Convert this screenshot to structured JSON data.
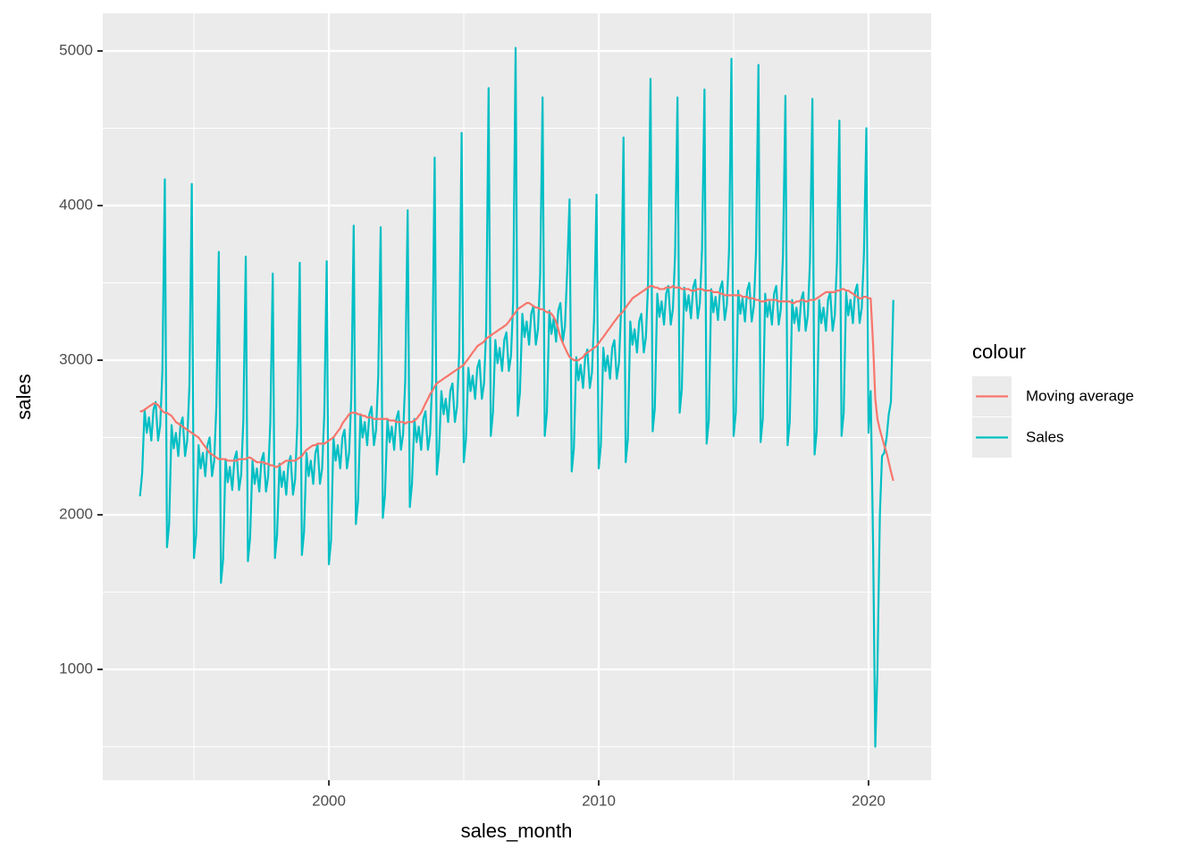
{
  "chart_data": {
    "type": "line",
    "x_label": "sales_month",
    "y_label": "sales",
    "legend_title": "colour",
    "xlim": [
      1991.62,
      2022.32
    ],
    "ylim": [
      283,
      5243
    ],
    "xticks": [
      2000,
      2010,
      2020
    ],
    "yticks": [
      1000,
      2000,
      3000,
      4000,
      5000
    ],
    "grid": true,
    "legend_position": "right",
    "x": [
      1993,
      1993.08,
      1993.17,
      1993.25,
      1993.33,
      1993.42,
      1993.5,
      1993.58,
      1993.67,
      1993.75,
      1993.83,
      1993.92,
      1994,
      1994.08,
      1994.17,
      1994.25,
      1994.33,
      1994.42,
      1994.5,
      1994.58,
      1994.67,
      1994.75,
      1994.83,
      1994.92,
      1995,
      1995.08,
      1995.17,
      1995.25,
      1995.33,
      1995.42,
      1995.5,
      1995.58,
      1995.67,
      1995.75,
      1995.83,
      1995.92,
      1996,
      1996.08,
      1996.17,
      1996.25,
      1996.33,
      1996.42,
      1996.5,
      1996.58,
      1996.67,
      1996.75,
      1996.83,
      1996.92,
      1997,
      1997.08,
      1997.17,
      1997.25,
      1997.33,
      1997.42,
      1997.5,
      1997.58,
      1997.67,
      1997.75,
      1997.83,
      1997.92,
      1998,
      1998.08,
      1998.17,
      1998.25,
      1998.33,
      1998.42,
      1998.5,
      1998.58,
      1998.67,
      1998.75,
      1998.83,
      1998.92,
      1999,
      1999.08,
      1999.17,
      1999.25,
      1999.33,
      1999.42,
      1999.5,
      1999.58,
      1999.67,
      1999.75,
      1999.83,
      1999.92,
      2000,
      2000.08,
      2000.17,
      2000.25,
      2000.33,
      2000.42,
      2000.5,
      2000.58,
      2000.67,
      2000.75,
      2000.83,
      2000.92,
      2001,
      2001.08,
      2001.17,
      2001.25,
      2001.33,
      2001.42,
      2001.5,
      2001.58,
      2001.67,
      2001.75,
      2001.83,
      2001.92,
      2002,
      2002.08,
      2002.17,
      2002.25,
      2002.33,
      2002.42,
      2002.5,
      2002.58,
      2002.67,
      2002.75,
      2002.83,
      2002.92,
      2003,
      2003.08,
      2003.17,
      2003.25,
      2003.33,
      2003.42,
      2003.5,
      2003.58,
      2003.67,
      2003.75,
      2003.83,
      2003.92,
      2004,
      2004.08,
      2004.17,
      2004.25,
      2004.33,
      2004.42,
      2004.5,
      2004.58,
      2004.67,
      2004.75,
      2004.83,
      2004.92,
      2005,
      2005.08,
      2005.17,
      2005.25,
      2005.33,
      2005.42,
      2005.5,
      2005.58,
      2005.67,
      2005.75,
      2005.83,
      2005.92,
      2006,
      2006.08,
      2006.17,
      2006.25,
      2006.33,
      2006.42,
      2006.5,
      2006.58,
      2006.67,
      2006.75,
      2006.83,
      2006.92,
      2007,
      2007.08,
      2007.17,
      2007.25,
      2007.33,
      2007.42,
      2007.5,
      2007.58,
      2007.67,
      2007.75,
      2007.83,
      2007.92,
      2008,
      2008.08,
      2008.17,
      2008.25,
      2008.33,
      2008.42,
      2008.5,
      2008.58,
      2008.67,
      2008.75,
      2008.83,
      2008.92,
      2009,
      2009.08,
      2009.17,
      2009.25,
      2009.33,
      2009.42,
      2009.5,
      2009.58,
      2009.67,
      2009.75,
      2009.83,
      2009.92,
      2010,
      2010.08,
      2010.17,
      2010.25,
      2010.33,
      2010.42,
      2010.5,
      2010.58,
      2010.67,
      2010.75,
      2010.83,
      2010.92,
      2011,
      2011.08,
      2011.17,
      2011.25,
      2011.33,
      2011.42,
      2011.5,
      2011.58,
      2011.67,
      2011.75,
      2011.83,
      2011.92,
      2012,
      2012.08,
      2012.17,
      2012.25,
      2012.33,
      2012.42,
      2012.5,
      2012.58,
      2012.67,
      2012.75,
      2012.83,
      2012.92,
      2013,
      2013.08,
      2013.17,
      2013.25,
      2013.33,
      2013.42,
      2013.5,
      2013.58,
      2013.67,
      2013.75,
      2013.83,
      2013.92,
      2014,
      2014.08,
      2014.17,
      2014.25,
      2014.33,
      2014.42,
      2014.5,
      2014.58,
      2014.67,
      2014.75,
      2014.83,
      2014.92,
      2015,
      2015.08,
      2015.17,
      2015.25,
      2015.33,
      2015.42,
      2015.5,
      2015.58,
      2015.67,
      2015.75,
      2015.83,
      2015.92,
      2016,
      2016.08,
      2016.17,
      2016.25,
      2016.33,
      2016.42,
      2016.5,
      2016.58,
      2016.67,
      2016.75,
      2016.83,
      2016.92,
      2017,
      2017.08,
      2017.17,
      2017.25,
      2017.33,
      2017.42,
      2017.5,
      2017.58,
      2017.67,
      2017.75,
      2017.83,
      2017.92,
      2018,
      2018.08,
      2018.17,
      2018.25,
      2018.33,
      2018.42,
      2018.5,
      2018.58,
      2018.67,
      2018.75,
      2018.83,
      2018.92,
      2019,
      2019.08,
      2019.17,
      2019.25,
      2019.33,
      2019.42,
      2019.5,
      2019.58,
      2019.67,
      2019.75,
      2019.83,
      2019.92,
      2020,
      2020.08,
      2020.17,
      2020.25,
      2020.33,
      2020.42,
      2020.5,
      2020.58,
      2020.67,
      2020.75,
      2020.83,
      2020.92
    ],
    "series": [
      {
        "name": "Moving average",
        "color": "#F8766D",
        "values": [
          2670,
          2670,
          2680,
          2690,
          2700,
          2710,
          2720,
          2720,
          2710,
          2690,
          2670,
          2660,
          2660,
          2650,
          2640,
          2620,
          2600,
          2590,
          2580,
          2570,
          2560,
          2550,
          2540,
          2530,
          2520,
          2510,
          2500,
          2480,
          2460,
          2440,
          2420,
          2400,
          2390,
          2380,
          2370,
          2360,
          2360,
          2360,
          2360,
          2350,
          2350,
          2350,
          2350,
          2350,
          2360,
          2360,
          2360,
          2360,
          2370,
          2370,
          2360,
          2350,
          2340,
          2340,
          2340,
          2340,
          2330,
          2330,
          2320,
          2320,
          2310,
          2310,
          2320,
          2330,
          2340,
          2350,
          2350,
          2350,
          2350,
          2350,
          2360,
          2370,
          2380,
          2400,
          2420,
          2430,
          2440,
          2450,
          2450,
          2460,
          2460,
          2460,
          2460,
          2470,
          2480,
          2490,
          2500,
          2520,
          2540,
          2560,
          2590,
          2610,
          2630,
          2650,
          2660,
          2660,
          2660,
          2650,
          2650,
          2640,
          2640,
          2630,
          2630,
          2630,
          2620,
          2620,
          2620,
          2620,
          2620,
          2620,
          2620,
          2610,
          2610,
          2610,
          2600,
          2600,
          2600,
          2600,
          2590,
          2600,
          2600,
          2600,
          2610,
          2620,
          2640,
          2660,
          2690,
          2720,
          2750,
          2780,
          2800,
          2830,
          2850,
          2860,
          2870,
          2880,
          2890,
          2900,
          2910,
          2920,
          2930,
          2940,
          2950,
          2960,
          2970,
          2990,
          3010,
          3030,
          3050,
          3070,
          3090,
          3100,
          3110,
          3120,
          3140,
          3150,
          3160,
          3170,
          3180,
          3190,
          3200,
          3210,
          3220,
          3230,
          3250,
          3270,
          3290,
          3310,
          3330,
          3340,
          3350,
          3360,
          3370,
          3370,
          3360,
          3350,
          3340,
          3340,
          3330,
          3330,
          3320,
          3310,
          3310,
          3300,
          3280,
          3250,
          3200,
          3150,
          3110,
          3080,
          3050,
          3020,
          3010,
          3000,
          3000,
          3000,
          3010,
          3020,
          3040,
          3050,
          3060,
          3070,
          3080,
          3090,
          3110,
          3130,
          3150,
          3170,
          3190,
          3210,
          3230,
          3250,
          3270,
          3290,
          3300,
          3320,
          3340,
          3360,
          3380,
          3400,
          3410,
          3420,
          3430,
          3440,
          3450,
          3460,
          3470,
          3480,
          3480,
          3470,
          3470,
          3460,
          3460,
          3460,
          3470,
          3470,
          3470,
          3480,
          3470,
          3470,
          3470,
          3460,
          3460,
          3460,
          3460,
          3450,
          3450,
          3450,
          3460,
          3460,
          3460,
          3450,
          3450,
          3450,
          3450,
          3440,
          3440,
          3440,
          3430,
          3430,
          3420,
          3420,
          3420,
          3420,
          3420,
          3420,
          3420,
          3420,
          3410,
          3410,
          3410,
          3400,
          3400,
          3400,
          3390,
          3390,
          3380,
          3380,
          3380,
          3390,
          3390,
          3390,
          3390,
          3390,
          3380,
          3380,
          3380,
          3380,
          3380,
          3380,
          3370,
          3370,
          3380,
          3380,
          3390,
          3390,
          3380,
          3380,
          3390,
          3390,
          3390,
          3400,
          3410,
          3420,
          3430,
          3440,
          3440,
          3440,
          3440,
          3440,
          3450,
          3450,
          3460,
          3460,
          3450,
          3450,
          3440,
          3430,
          3420,
          3410,
          3400,
          3400,
          3410,
          3410,
          3400,
          3400,
          3100,
          2750,
          2620,
          2550,
          2500,
          2450,
          2400,
          2340,
          2280,
          2220
        ]
      },
      {
        "name": "Sales",
        "color": "#00BFC4",
        "values": [
          2120,
          2270,
          2680,
          2530,
          2630,
          2480,
          2680,
          2730,
          2480,
          2580,
          2930,
          4170,
          1790,
          1940,
          2580,
          2430,
          2530,
          2380,
          2580,
          2630,
          2380,
          2480,
          2830,
          4140,
          1720,
          1870,
          2450,
          2300,
          2400,
          2250,
          2450,
          2500,
          2250,
          2350,
          2700,
          3700,
          1560,
          1710,
          2360,
          2210,
          2310,
          2160,
          2360,
          2410,
          2160,
          2260,
          2610,
          3670,
          1700,
          1850,
          2350,
          2200,
          2300,
          2150,
          2350,
          2400,
          2150,
          2250,
          2600,
          3560,
          1720,
          1870,
          2330,
          2180,
          2280,
          2130,
          2330,
          2380,
          2130,
          2230,
          2580,
          3630,
          1740,
          1890,
          2400,
          2250,
          2350,
          2200,
          2400,
          2450,
          2200,
          2300,
          2650,
          3640,
          1680,
          1830,
          2500,
          2350,
          2450,
          2300,
          2500,
          2550,
          2300,
          2400,
          2750,
          3870,
          1940,
          2090,
          2650,
          2500,
          2600,
          2450,
          2650,
          2700,
          2450,
          2550,
          2900,
          3860,
          1980,
          2130,
          2620,
          2470,
          2570,
          2420,
          2620,
          2670,
          2420,
          2520,
          2870,
          3970,
          2050,
          2200,
          2620,
          2470,
          2570,
          2420,
          2620,
          2670,
          2420,
          2520,
          2870,
          4310,
          2260,
          2410,
          2800,
          2650,
          2750,
          2600,
          2800,
          2850,
          2600,
          2700,
          3050,
          4470,
          2340,
          2490,
          2950,
          2800,
          2900,
          2750,
          2950,
          3000,
          2750,
          2850,
          3200,
          4760,
          2510,
          2660,
          3130,
          2980,
          3080,
          2930,
          3130,
          3180,
          2930,
          3030,
          3380,
          5020,
          2640,
          2790,
          3300,
          3150,
          3250,
          3100,
          3300,
          3350,
          3100,
          3200,
          3550,
          4700,
          2510,
          2660,
          3320,
          3170,
          3270,
          3120,
          3320,
          3370,
          3120,
          3220,
          3570,
          4040,
          2280,
          2430,
          3020,
          2870,
          2970,
          2820,
          3020,
          3070,
          2820,
          2920,
          3270,
          4070,
          2300,
          2450,
          3080,
          2930,
          3030,
          2880,
          3080,
          3130,
          2880,
          2980,
          3330,
          4440,
          2340,
          2490,
          3250,
          3100,
          3200,
          3050,
          3250,
          3300,
          3050,
          3150,
          3500,
          4820,
          2540,
          2690,
          3430,
          3280,
          3380,
          3230,
          3430,
          3480,
          3230,
          3330,
          3680,
          4700,
          2660,
          2810,
          3470,
          3320,
          3420,
          3270,
          3470,
          3520,
          3270,
          3370,
          3720,
          4750,
          2460,
          2610,
          3460,
          3310,
          3410,
          3260,
          3460,
          3510,
          3260,
          3360,
          3710,
          4950,
          2510,
          2660,
          3450,
          3300,
          3400,
          3250,
          3450,
          3500,
          3250,
          3350,
          3700,
          4910,
          2470,
          2620,
          3430,
          3280,
          3380,
          3230,
          3430,
          3480,
          3230,
          3330,
          3680,
          4710,
          2450,
          2600,
          3390,
          3240,
          3340,
          3190,
          3390,
          3440,
          3190,
          3290,
          3640,
          4690,
          2390,
          2540,
          3390,
          3240,
          3340,
          3190,
          3390,
          3440,
          3190,
          3290,
          3640,
          4550,
          2510,
          2660,
          3440,
          3290,
          3390,
          3240,
          3440,
          3490,
          3240,
          3340,
          3690,
          4500,
          2530,
          2800,
          1800,
          500,
          1000,
          2000,
          2380,
          2400,
          2500,
          2650,
          2730,
          3390
        ]
      }
    ]
  }
}
